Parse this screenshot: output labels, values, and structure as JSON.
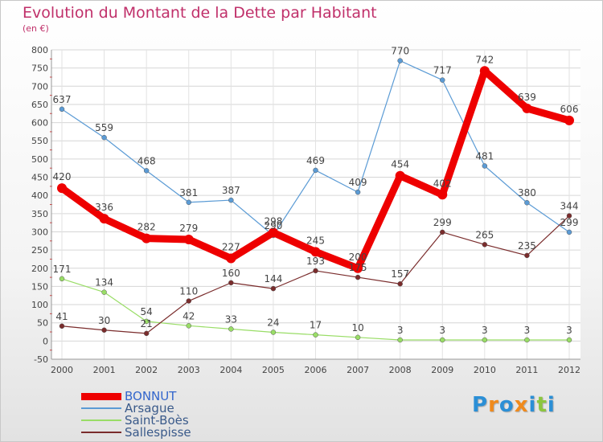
{
  "title": "Evolution du Montant de la Dette par Habitant",
  "unit": "(en €)",
  "brand": {
    "name": "Proxiti",
    "letters": [
      "P",
      "r",
      "o",
      "x",
      "i",
      "t",
      "i"
    ],
    "letter_colors": [
      "#2b8fd6",
      "#f08a1c",
      "#2b8fd6",
      "#f08a1c",
      "#2b8fd6",
      "#8cc63f",
      "#2b8fd6"
    ]
  },
  "chart_data": {
    "type": "line",
    "title": "Evolution du Montant de la Dette par Habitant",
    "subtitle": "(en €)",
    "xlabel": "",
    "ylabel": "",
    "categories": [
      "2000",
      "2001",
      "2002",
      "2003",
      "2004",
      "2005",
      "2006",
      "2007",
      "2008",
      "2009",
      "2010",
      "2011",
      "2012"
    ],
    "ylim": [
      -50,
      800
    ],
    "yticks": [
      "-50",
      "0",
      "50",
      "100",
      "150",
      "200",
      "250",
      "300",
      "350",
      "400",
      "450",
      "500",
      "550",
      "600",
      "650",
      "700",
      "750",
      "800"
    ],
    "grid": true,
    "legend_position": "bottom-left",
    "series": [
      {
        "name": "BONNUT",
        "color": "#ee0000",
        "emphasis": true,
        "values": [
          420,
          336,
          282,
          279,
          227,
          298,
          245,
          200,
          454,
          402,
          742,
          639,
          606
        ],
        "labels": [
          "420",
          "336",
          "282",
          "279",
          "227",
          "298",
          "245",
          "200",
          "454",
          "402",
          "742",
          "639",
          "606"
        ]
      },
      {
        "name": "Arsague",
        "color": "#5b9bd5",
        "emphasis": false,
        "values": [
          637,
          559,
          468,
          381,
          387,
          290,
          469,
          409,
          770,
          717,
          481,
          380,
          299
        ],
        "labels": [
          "637",
          "559",
          "468",
          "381",
          "387",
          "290",
          "469",
          "409",
          "770",
          "717",
          "481",
          "380",
          "299"
        ]
      },
      {
        "name": "Saint-Boès",
        "color": "#99dd66",
        "emphasis": false,
        "values": [
          171,
          134,
          54,
          42,
          33,
          24,
          17,
          10,
          3,
          3,
          3,
          3,
          3
        ],
        "labels": [
          "171",
          "134",
          "54",
          "42",
          "33",
          "24",
          "17",
          "10",
          "3",
          "3",
          "3",
          "3",
          "3"
        ]
      },
      {
        "name": "Sallespisse",
        "color": "#7a2c2c",
        "emphasis": false,
        "values": [
          41,
          30,
          21,
          110,
          160,
          144,
          193,
          175,
          157,
          299,
          265,
          235,
          344
        ],
        "labels": [
          "41",
          "30",
          "21",
          "110",
          "160",
          "144",
          "193",
          "175",
          "157",
          "299",
          "265",
          "235",
          "344"
        ]
      }
    ]
  }
}
